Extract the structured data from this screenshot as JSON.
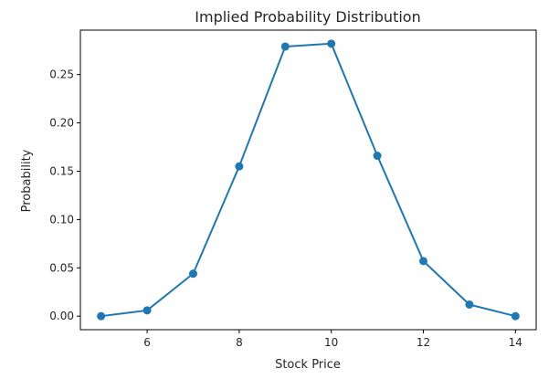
{
  "chart_data": {
    "type": "line",
    "title": "Implied Probability Distribution",
    "xlabel": "Stock Price",
    "ylabel": "Probability",
    "x": [
      5,
      6,
      7,
      8,
      9,
      10,
      11,
      12,
      13,
      14
    ],
    "series": [
      {
        "values": [
          0.0,
          0.006,
          0.044,
          0.155,
          0.279,
          0.282,
          0.166,
          0.057,
          0.012,
          0.0
        ],
        "color": "#1f77b4"
      }
    ],
    "xlim": [
      4.55,
      14.45
    ],
    "ylim": [
      -0.014,
      0.296
    ],
    "xticks": [
      6,
      8,
      10,
      12,
      14
    ],
    "xtick_labels": [
      "6",
      "8",
      "10",
      "12",
      "14"
    ],
    "yticks": [
      0.0,
      0.05,
      0.1,
      0.15,
      0.2,
      0.25
    ],
    "ytick_labels": [
      "0.00",
      "0.05",
      "0.10",
      "0.15",
      "0.20",
      "0.25"
    ],
    "grid": false,
    "markers": true
  }
}
